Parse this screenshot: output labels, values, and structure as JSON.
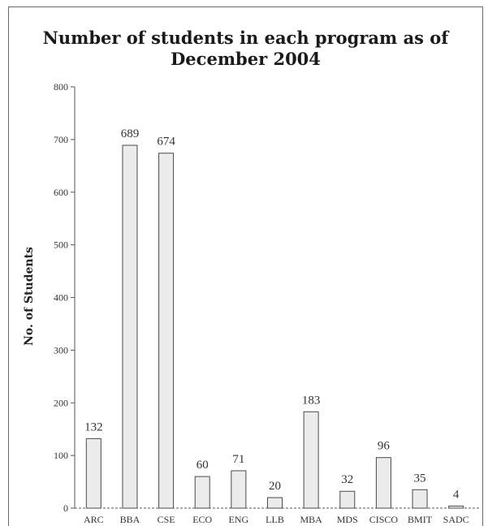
{
  "chart_data": {
    "type": "bar",
    "title": [
      "Number of students in each program as of",
      "December 2004"
    ],
    "xlabel": "",
    "ylabel": "No. of Students",
    "ylim": [
      0,
      800
    ],
    "yticks": [
      0,
      100,
      200,
      300,
      400,
      500,
      600,
      700,
      800
    ],
    "categories": [
      "ARC",
      "BBA",
      "CSE",
      "ECO",
      "ENG",
      "LLB",
      "MBA",
      "MDS",
      "CISCO",
      "BMIT",
      "SADC"
    ],
    "values": [
      132,
      689,
      674,
      60,
      71,
      20,
      183,
      32,
      96,
      35,
      4
    ],
    "data_labels": [
      "132",
      "689",
      "674",
      "60",
      "71",
      "20",
      "183",
      "32",
      "96",
      "35",
      "4"
    ],
    "grid": false,
    "colors": {
      "bar_fill": "#ececec",
      "bar_stroke": "#4a4a4a",
      "axis": "#555555"
    }
  }
}
